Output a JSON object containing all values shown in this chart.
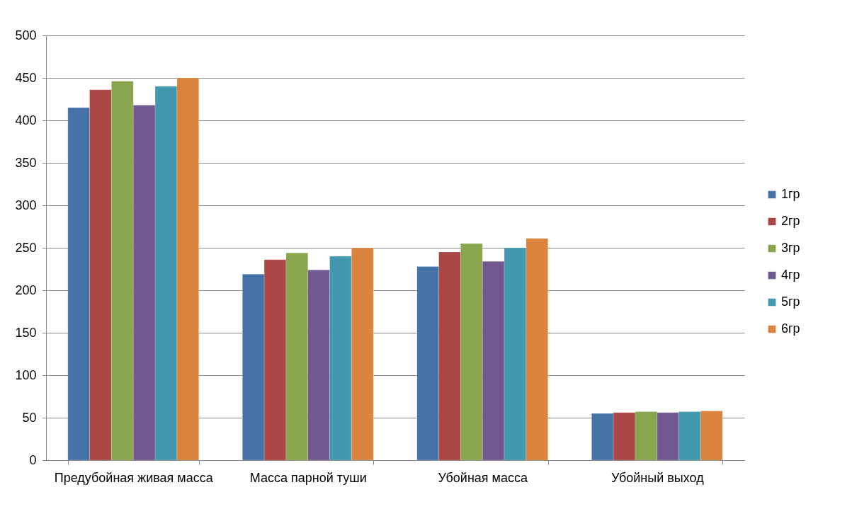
{
  "chart_data": {
    "type": "bar",
    "categories": [
      "Предубойная живая масса",
      "Масса парной туши",
      "Убойная масса",
      "Убойный выход"
    ],
    "series": [
      {
        "name": "1гр",
        "color": "#4572a7",
        "values": [
          415,
          219,
          228,
          55
        ]
      },
      {
        "name": "2гр",
        "color": "#aa4643",
        "values": [
          436,
          236,
          245,
          56
        ]
      },
      {
        "name": "3гр",
        "color": "#89a54e",
        "values": [
          446,
          244,
          255,
          57
        ]
      },
      {
        "name": "4гр",
        "color": "#71588f",
        "values": [
          418,
          224,
          234,
          56
        ]
      },
      {
        "name": "5гр",
        "color": "#4198af",
        "values": [
          440,
          240,
          250,
          57
        ]
      },
      {
        "name": "6гр",
        "color": "#db843d",
        "values": [
          450,
          250,
          261,
          58
        ]
      }
    ],
    "ylim": [
      0,
      500
    ],
    "yticks": [
      0,
      50,
      100,
      150,
      200,
      250,
      300,
      350,
      400,
      450,
      500
    ],
    "grid": "y",
    "legend": "right"
  }
}
